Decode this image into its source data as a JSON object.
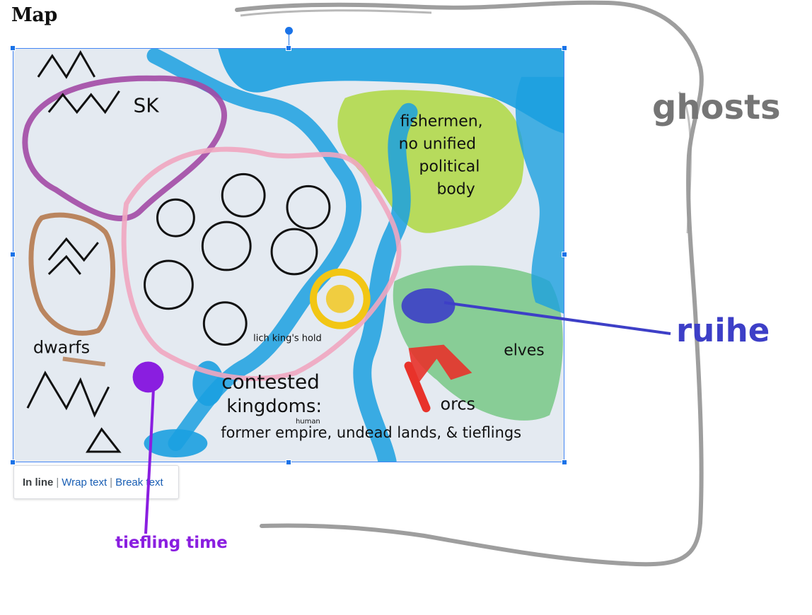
{
  "document": {
    "heading": "Map"
  },
  "image_toolbar": {
    "in_line": "In line",
    "separator": "|",
    "wrap_text": "Wrap text",
    "break_text": "Break text"
  },
  "map_labels": {
    "sk": "SK",
    "dwarfs": "dwarfs",
    "fishermen": "fishermen,",
    "no_unified": "no unified",
    "political": "political",
    "body": "body",
    "lich_kings_hold": "lich king's hold",
    "contested": "contested",
    "kingdoms": "kingdoms:",
    "human": "human",
    "former_empire": "former empire, undead lands, & tieflings",
    "elves": "elves",
    "orcs": "orcs"
  },
  "annotations": {
    "ghosts": "ghosts",
    "ruihe": "ruihe",
    "tiefling_time": "tiefling time"
  },
  "colors": {
    "selection_blue": "#1a73e8",
    "ghosts_gray": "#757575",
    "ruihe_blue": "#3d3fc7",
    "tiefling_purple": "#8a1ee0",
    "river_blue": "#1ba0e0",
    "forest_green": "#a8d62a",
    "elf_green": "#3cb44b",
    "sk_purple": "#a24aa5",
    "dwarf_brown": "#b57a4f",
    "orc_red": "#e8322a",
    "sun_yellow": "#f2c614"
  },
  "icons": {
    "rotate": "rotate-handle",
    "resize": "resize-handle"
  }
}
